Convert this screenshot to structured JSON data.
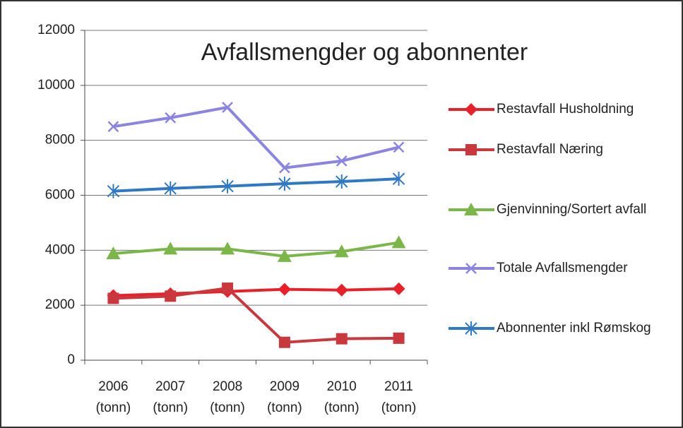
{
  "chart_data": {
    "type": "line",
    "title": "Avfallsmengder og  abonnenter",
    "categories": [
      "2006 (tonn)",
      "2007 (tonn)",
      "2008 (tonn)",
      "2009 (tonn)",
      "2010 (tonn)",
      "2011 (tonn)"
    ],
    "series": [
      {
        "name": "Restavfall Husholdning",
        "color": "#e8202a",
        "marker": "diamond",
        "values": [
          2350,
          2420,
          2500,
          2580,
          2550,
          2600
        ]
      },
      {
        "name": "Restavfall Næring",
        "color": "#c8383c",
        "marker": "square",
        "values": [
          2250,
          2330,
          2620,
          650,
          780,
          800
        ]
      },
      {
        "name": "Gjenvinning/Sortert avfall",
        "color": "#7ab648",
        "marker": "triangle",
        "values": [
          3880,
          4050,
          4050,
          3780,
          3950,
          4280
        ]
      },
      {
        "name": "Totale Avfallsmengder",
        "color": "#8b84e0",
        "marker": "x",
        "values": [
          8500,
          8820,
          9200,
          7000,
          7250,
          7750
        ]
      },
      {
        "name": "Abonnenter inkl Rømskog",
        "color": "#2f78c4",
        "marker": "star",
        "values": [
          6150,
          6250,
          6330,
          6420,
          6500,
          6600
        ]
      }
    ],
    "ylim": [
      0,
      12000
    ],
    "yticks": [
      0,
      2000,
      4000,
      6000,
      8000,
      10000,
      12000
    ],
    "grid": true,
    "legend": "right"
  }
}
